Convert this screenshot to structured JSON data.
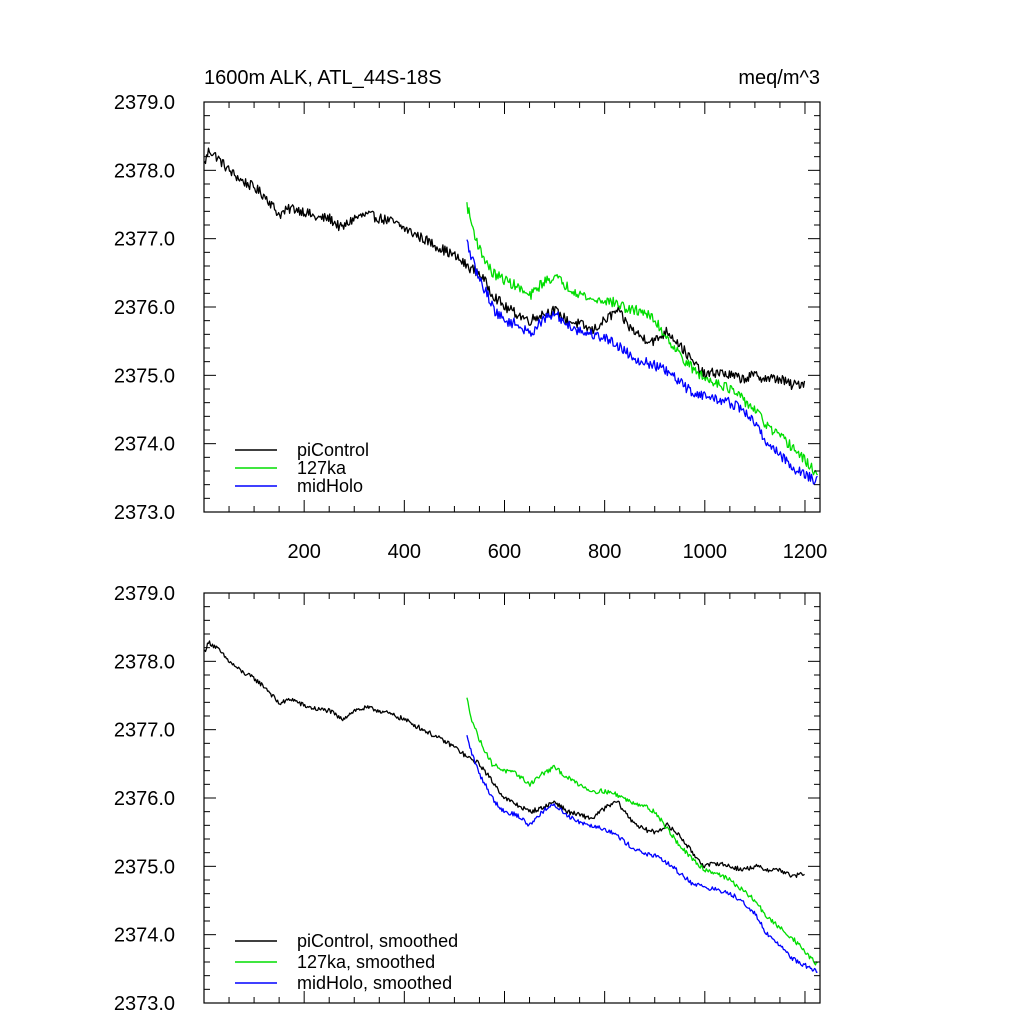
{
  "chart_data": [
    {
      "type": "line",
      "title": "1600m ALK, ATL_44S-18S",
      "units": "meq/m^3",
      "xlim": [
        0,
        1230
      ],
      "ylim": [
        2373.0,
        2379.0
      ],
      "x_ticks": [
        200,
        400,
        600,
        800,
        1000,
        1200
      ],
      "x_tick_labels": [
        "200",
        "400",
        "600",
        "800",
        "1000",
        "1200"
      ],
      "y_ticks": [
        2373.0,
        2374.0,
        2375.0,
        2376.0,
        2377.0,
        2378.0,
        2379.0
      ],
      "y_tick_labels": [
        "2373.0",
        "2374.0",
        "2375.0",
        "2376.0",
        "2377.0",
        "2378.0",
        "2379.0"
      ],
      "legend_position": "bottom-left",
      "smoothed": false,
      "series": [
        {
          "name": "piControl",
          "color": "#000000",
          "x": [
            1,
            10,
            25,
            50,
            75,
            100,
            125,
            150,
            175,
            200,
            225,
            250,
            275,
            300,
            325,
            350,
            375,
            400,
            425,
            450,
            475,
            500,
            525,
            550,
            575,
            600,
            625,
            650,
            675,
            700,
            725,
            750,
            775,
            800,
            825,
            850,
            875,
            900,
            925,
            950,
            975,
            1000,
            1025,
            1050,
            1075,
            1100,
            1125,
            1150,
            1175,
            1200
          ],
          "y": [
            2378.1,
            2378.3,
            2378.2,
            2378.0,
            2377.85,
            2377.75,
            2377.6,
            2377.35,
            2377.45,
            2377.4,
            2377.3,
            2377.3,
            2377.15,
            2377.3,
            2377.35,
            2377.3,
            2377.25,
            2377.15,
            2377.05,
            2376.95,
            2376.85,
            2376.75,
            2376.6,
            2376.5,
            2376.2,
            2376.0,
            2375.9,
            2375.8,
            2375.9,
            2375.95,
            2375.8,
            2375.75,
            2375.65,
            2375.8,
            2375.95,
            2375.7,
            2375.55,
            2375.5,
            2375.65,
            2375.45,
            2375.2,
            2375.0,
            2375.05,
            2375.0,
            2374.95,
            2375.0,
            2374.95,
            2374.95,
            2374.85,
            2374.9
          ]
        },
        {
          "name": "127ka",
          "color": "#00dd00",
          "x": [
            525,
            535,
            550,
            575,
            600,
            625,
            650,
            675,
            700,
            725,
            750,
            775,
            800,
            825,
            850,
            875,
            900,
            925,
            950,
            975,
            1000,
            1025,
            1050,
            1075,
            1100,
            1125,
            1150,
            1175,
            1200,
            1225
          ],
          "y": [
            2377.5,
            2377.2,
            2376.85,
            2376.5,
            2376.4,
            2376.3,
            2376.15,
            2376.35,
            2376.45,
            2376.3,
            2376.2,
            2376.1,
            2376.1,
            2376.05,
            2375.95,
            2375.95,
            2375.8,
            2375.55,
            2375.3,
            2375.1,
            2374.95,
            2374.9,
            2374.8,
            2374.65,
            2374.5,
            2374.25,
            2374.1,
            2373.95,
            2373.75,
            2373.55
          ]
        },
        {
          "name": "midHolo",
          "color": "#0000ff",
          "x": [
            525,
            535,
            550,
            565,
            580,
            600,
            625,
            650,
            675,
            700,
            725,
            750,
            775,
            800,
            825,
            850,
            875,
            900,
            925,
            950,
            975,
            1000,
            1025,
            1050,
            1075,
            1100,
            1125,
            1150,
            1175,
            1200,
            1225
          ],
          "y": [
            2376.95,
            2376.7,
            2376.4,
            2376.2,
            2375.95,
            2375.8,
            2375.75,
            2375.6,
            2375.8,
            2375.9,
            2375.75,
            2375.65,
            2375.6,
            2375.55,
            2375.45,
            2375.3,
            2375.2,
            2375.15,
            2375.05,
            2374.9,
            2374.75,
            2374.7,
            2374.65,
            2374.6,
            2374.5,
            2374.3,
            2374.0,
            2373.85,
            2373.65,
            2373.55,
            2373.45
          ]
        }
      ]
    },
    {
      "type": "line",
      "xlim": [
        0,
        1230
      ],
      "ylim": [
        2373.0,
        2379.0
      ],
      "x_ticks": [
        200,
        400,
        600,
        800,
        1000,
        1200
      ],
      "x_tick_labels": [],
      "y_ticks": [
        2373.0,
        2374.0,
        2375.0,
        2376.0,
        2377.0,
        2378.0,
        2379.0
      ],
      "y_tick_labels": [
        "2373.0",
        "2374.0",
        "2375.0",
        "2376.0",
        "2377.0",
        "2378.0",
        "2379.0"
      ],
      "legend_position": "bottom-left",
      "smoothed": true,
      "series": [
        {
          "name": "piControl, smoothed",
          "color": "#000000",
          "x": [
            1,
            10,
            25,
            50,
            75,
            100,
            125,
            150,
            175,
            200,
            225,
            250,
            275,
            300,
            325,
            350,
            375,
            400,
            425,
            450,
            475,
            500,
            525,
            550,
            575,
            600,
            625,
            650,
            675,
            700,
            725,
            750,
            775,
            800,
            825,
            850,
            875,
            900,
            925,
            950,
            975,
            1000,
            1025,
            1050,
            1075,
            1100,
            1125,
            1150,
            1175,
            1200
          ],
          "y": [
            2378.15,
            2378.28,
            2378.2,
            2378.0,
            2377.85,
            2377.75,
            2377.6,
            2377.38,
            2377.45,
            2377.35,
            2377.3,
            2377.28,
            2377.15,
            2377.28,
            2377.32,
            2377.28,
            2377.22,
            2377.15,
            2377.05,
            2376.95,
            2376.85,
            2376.75,
            2376.6,
            2376.5,
            2376.25,
            2376.0,
            2375.9,
            2375.8,
            2375.85,
            2375.95,
            2375.8,
            2375.75,
            2375.7,
            2375.85,
            2375.95,
            2375.7,
            2375.55,
            2375.5,
            2375.6,
            2375.45,
            2375.2,
            2375.0,
            2375.05,
            2375.0,
            2374.95,
            2375.0,
            2374.95,
            2374.95,
            2374.85,
            2374.9
          ]
        },
        {
          "name": "127ka, smoothed",
          "color": "#00dd00",
          "x": [
            525,
            535,
            550,
            575,
            600,
            625,
            650,
            675,
            700,
            725,
            750,
            775,
            800,
            825,
            850,
            875,
            900,
            925,
            950,
            975,
            1000,
            1025,
            1050,
            1075,
            1100,
            1125,
            1150,
            1175,
            1200,
            1225
          ],
          "y": [
            2377.45,
            2377.15,
            2376.85,
            2376.5,
            2376.4,
            2376.35,
            2376.2,
            2376.35,
            2376.45,
            2376.3,
            2376.2,
            2376.1,
            2376.1,
            2376.05,
            2375.95,
            2375.9,
            2375.8,
            2375.55,
            2375.3,
            2375.1,
            2374.95,
            2374.9,
            2374.8,
            2374.65,
            2374.5,
            2374.25,
            2374.1,
            2373.95,
            2373.75,
            2373.55
          ]
        },
        {
          "name": "midHolo, smoothed",
          "color": "#0000ff",
          "x": [
            525,
            535,
            550,
            565,
            580,
            600,
            625,
            650,
            675,
            700,
            725,
            750,
            775,
            800,
            825,
            850,
            875,
            900,
            925,
            950,
            975,
            1000,
            1025,
            1050,
            1075,
            1100,
            1125,
            1150,
            1175,
            1200,
            1225
          ],
          "y": [
            2376.9,
            2376.65,
            2376.35,
            2376.15,
            2375.95,
            2375.8,
            2375.75,
            2375.6,
            2375.8,
            2375.9,
            2375.75,
            2375.65,
            2375.6,
            2375.55,
            2375.45,
            2375.3,
            2375.2,
            2375.15,
            2375.05,
            2374.9,
            2374.75,
            2374.7,
            2374.65,
            2374.6,
            2374.5,
            2374.3,
            2374.0,
            2373.85,
            2373.65,
            2373.55,
            2373.45
          ]
        }
      ]
    }
  ]
}
